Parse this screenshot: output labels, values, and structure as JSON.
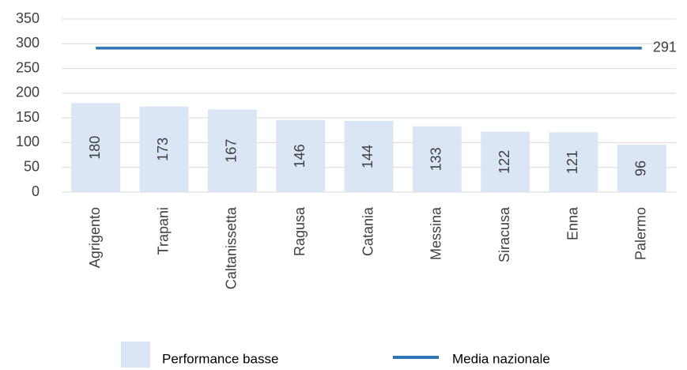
{
  "chart_data": {
    "type": "bar",
    "categories": [
      "Agrigento",
      "Trapani",
      "Caltanissetta",
      "Ragusa",
      "Catania",
      "Messina",
      "Siracusa",
      "Enna",
      "Palermo"
    ],
    "series": [
      {
        "name": "Performance basse",
        "color": "#dae5f5",
        "values": [
          180,
          173,
          167,
          146,
          144,
          133,
          122,
          121,
          96
        ]
      },
      {
        "name": "Media nazionale",
        "type": "line",
        "color": "#2e75b6",
        "values": [
          291,
          291,
          291,
          291,
          291,
          291,
          291,
          291,
          291
        ]
      }
    ],
    "ylim": [
      0,
      350
    ],
    "yticks": [
      0,
      50,
      100,
      150,
      200,
      250,
      300,
      350
    ],
    "grid": true
  }
}
